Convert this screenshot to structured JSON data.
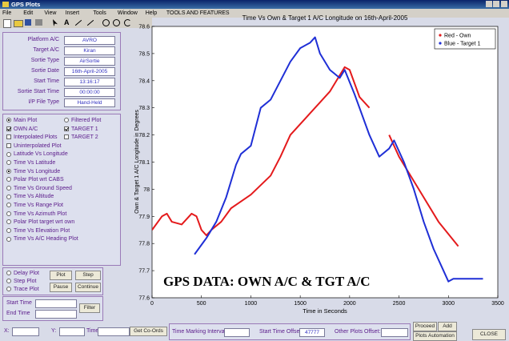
{
  "window_title": "GPS Plots",
  "menu": [
    "File",
    "Edit",
    "View",
    "Insert",
    "Tools",
    "Window",
    "Help",
    "TOOLS AND FEATURES"
  ],
  "info": [
    {
      "label": "Platform A/C",
      "value": "AVRO"
    },
    {
      "label": "Target A/C",
      "value": "Kiran"
    },
    {
      "label": "Sortie Type",
      "value": "AirSortie"
    },
    {
      "label": "Sortie Date",
      "value": "16th-April-2005"
    },
    {
      "label": "Start Time",
      "value": "13:16:17"
    },
    {
      "label": "Sortie Start Time",
      "value": "00:00:00"
    },
    {
      "label": "I/P File Type",
      "value": "Hand-Held"
    }
  ],
  "options": [
    {
      "label": "Main Plot",
      "kind": "radio",
      "checked": true
    },
    {
      "label": "Filtered Plot",
      "kind": "radio",
      "checked": false
    },
    {
      "label": "OWN A/C",
      "kind": "check",
      "checked": true
    },
    {
      "label": "TARGET 1",
      "kind": "check",
      "checked": true
    },
    {
      "label": "Interpolated Plots",
      "kind": "check",
      "checked": false
    },
    {
      "label": "TARGET 2",
      "kind": "check",
      "checked": false
    },
    {
      "label": "Uninterpolated Plot",
      "kind": "check",
      "checked": false
    },
    {
      "label": "Latitude Vs Longitude",
      "kind": "radio",
      "checked": false
    },
    {
      "label": "Time Vs Latitude",
      "kind": "radio",
      "checked": false
    },
    {
      "label": "Time Vs Longitude",
      "kind": "radio",
      "checked": true
    },
    {
      "label": "Polar Plot wrt CABS",
      "kind": "radio",
      "checked": false
    },
    {
      "label": "Time Vs Ground Speed",
      "kind": "radio",
      "checked": false
    },
    {
      "label": "Time Vs Altitude",
      "kind": "radio",
      "checked": false
    },
    {
      "label": "Time Vs Range Plot",
      "kind": "radio",
      "checked": false
    },
    {
      "label": "Time Vs Azimuth Plot",
      "kind": "radio",
      "checked": false
    },
    {
      "label": "Polar Plot target wrt own",
      "kind": "radio",
      "checked": false
    },
    {
      "label": "Time Vs Elevation Plot",
      "kind": "radio",
      "checked": false
    },
    {
      "label": "Time Vs A/C Heading Plot",
      "kind": "radio",
      "checked": false
    }
  ],
  "playback": {
    "modes": [
      "Delay Plot",
      "Step Plot",
      "Trace Plot"
    ],
    "buttons": [
      "Plot",
      "Step",
      "Pause",
      "Continue"
    ]
  },
  "filter": {
    "start_label": "Start Time",
    "end_label": "End Time",
    "button": "Filter"
  },
  "bottom": {
    "x_label": "X:",
    "y_label": "Y:",
    "time_label": "Time",
    "coords_button": "Get Co-Ords",
    "interval_label": "Time Marking Interval",
    "offset_label": "Start Time Offset",
    "offset_value": "47777",
    "other_label": "Other Plots Offset:",
    "proceed": "Proceed",
    "add": "Add",
    "automation": "Plots Automation",
    "close": "CLOSE"
  },
  "chart_data": {
    "type": "line",
    "title": "Time Vs Own & Target 1 A/C Longitude on 16th-April-2005",
    "x_label": "Time in Seconds",
    "y_label": "Own & Target 1 A/C Longitude in Degrees",
    "annotation": "GPS DATA:  OWN A/C & TGT A/C",
    "xlim": [
      0,
      3500
    ],
    "xticks": [
      0,
      500,
      1000,
      1500,
      2000,
      2500,
      3000,
      3500
    ],
    "ylim": [
      77.6,
      78.6
    ],
    "yticks": [
      77.6,
      77.7,
      77.8,
      77.9,
      78,
      78.1,
      78.2,
      78.3,
      78.4,
      78.5,
      78.6
    ],
    "legend": "upper right",
    "series": [
      {
        "name": "Red - Own",
        "color": "#e41a1c",
        "x": [
          0,
          100,
          150,
          200,
          300,
          400,
          450,
          500,
          550,
          600,
          700,
          800,
          1000,
          1200,
          1300,
          1400,
          1600,
          1800,
          1900,
          1950,
          2000,
          2100,
          2200,
          2300,
          2400,
          2500,
          2700,
          2900,
          3100
        ],
        "values": [
          77.85,
          77.9,
          77.91,
          77.88,
          77.87,
          77.91,
          77.9,
          77.85,
          77.83,
          77.85,
          77.88,
          77.93,
          77.98,
          78.05,
          78.12,
          78.2,
          78.28,
          78.36,
          78.42,
          78.45,
          78.44,
          78.34,
          78.3,
          null,
          78.2,
          78.12,
          78.0,
          77.88,
          77.79
        ]
      },
      {
        "name": "Blue - Target 1",
        "color": "#1f2fd6",
        "x": [
          430,
          550,
          650,
          750,
          850,
          900,
          1000,
          1100,
          1200,
          1300,
          1400,
          1500,
          1600,
          1650,
          1700,
          1800,
          1900,
          1950,
          2050,
          2200,
          2300,
          2400,
          2450,
          2550,
          2650,
          2750,
          2850,
          2950,
          3000,
          3050,
          3350
        ],
        "values": [
          77.76,
          77.82,
          77.88,
          77.97,
          78.09,
          78.13,
          78.16,
          78.3,
          78.33,
          78.4,
          78.47,
          78.52,
          78.54,
          78.56,
          78.5,
          78.44,
          78.41,
          78.44,
          78.35,
          78.2,
          78.12,
          78.15,
          78.18,
          78.1,
          78.0,
          77.88,
          77.78,
          77.7,
          77.66,
          77.67,
          77.67
        ]
      }
    ]
  }
}
